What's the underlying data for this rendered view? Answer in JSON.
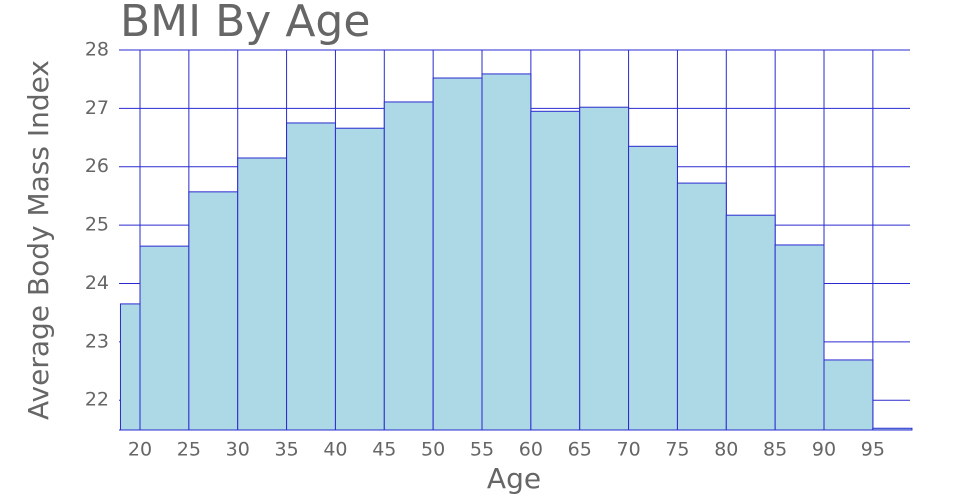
{
  "chart_data": {
    "type": "histogram",
    "title": "BMI By Age",
    "x_label": "Age",
    "y_label": "Average Body Mass Index",
    "bins": [
      18,
      20,
      25,
      30,
      35,
      40,
      45,
      50,
      55,
      60,
      65,
      70,
      75,
      80,
      85,
      90,
      95,
      99
    ],
    "values": [
      23.65,
      24.64,
      25.57,
      26.15,
      26.75,
      26.66,
      27.11,
      27.52,
      27.59,
      26.95,
      27.02,
      26.35,
      25.72,
      25.17,
      24.66,
      22.69,
      21.52
    ],
    "color": "#add8e6",
    "edge_color": "#2a2ad0",
    "grid_color": "#2a2ad0",
    "xlim": [
      17.85,
      98.8
    ],
    "ylim": [
      21.49,
      28
    ],
    "xticks": [
      20,
      25,
      30,
      35,
      40,
      45,
      50,
      55,
      60,
      65,
      70,
      75,
      80,
      85,
      90,
      95
    ],
    "yticks": [
      22,
      23,
      24,
      25,
      26,
      27,
      28
    ],
    "grid": true
  }
}
